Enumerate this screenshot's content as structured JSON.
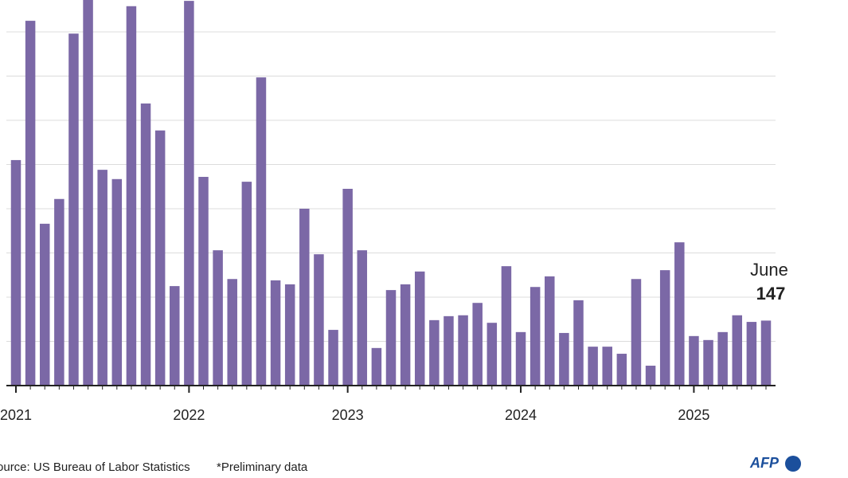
{
  "chart_data": {
    "type": "bar",
    "categories": [
      "2021",
      null,
      null,
      null,
      null,
      null,
      null,
      null,
      null,
      null,
      null,
      null,
      "2022",
      null,
      null,
      null,
      null,
      null,
      null,
      null,
      null,
      null,
      null,
      "2023",
      null,
      null,
      null,
      null,
      null,
      null,
      null,
      null,
      null,
      null,
      null,
      "2024",
      null,
      null,
      null,
      null,
      null,
      null,
      null,
      null,
      null,
      null,
      null,
      "2025",
      null,
      null,
      null,
      null,
      null
    ],
    "values": [
      510,
      825,
      366,
      422,
      796,
      900,
      488,
      467,
      858,
      638,
      577,
      225,
      870,
      472,
      306,
      241,
      461,
      697,
      238,
      229,
      400,
      297,
      126,
      445,
      306,
      85,
      216,
      229,
      258,
      148,
      157,
      159,
      187,
      142,
      270,
      121,
      223,
      247,
      119,
      193,
      88,
      88,
      72,
      241,
      45,
      261,
      324,
      112,
      103,
      121,
      159,
      144,
      147
    ],
    "color": "#7b68a6",
    "ylim": [
      0,
      872
    ],
    "yticks": [
      100,
      200,
      300,
      400,
      500,
      600,
      700,
      800
    ],
    "grid": true,
    "annotation": "June",
    "source": "Source: US Bureau of Labor Statistics",
    "note": "*Preliminary data",
    "logo": "AFP"
  }
}
